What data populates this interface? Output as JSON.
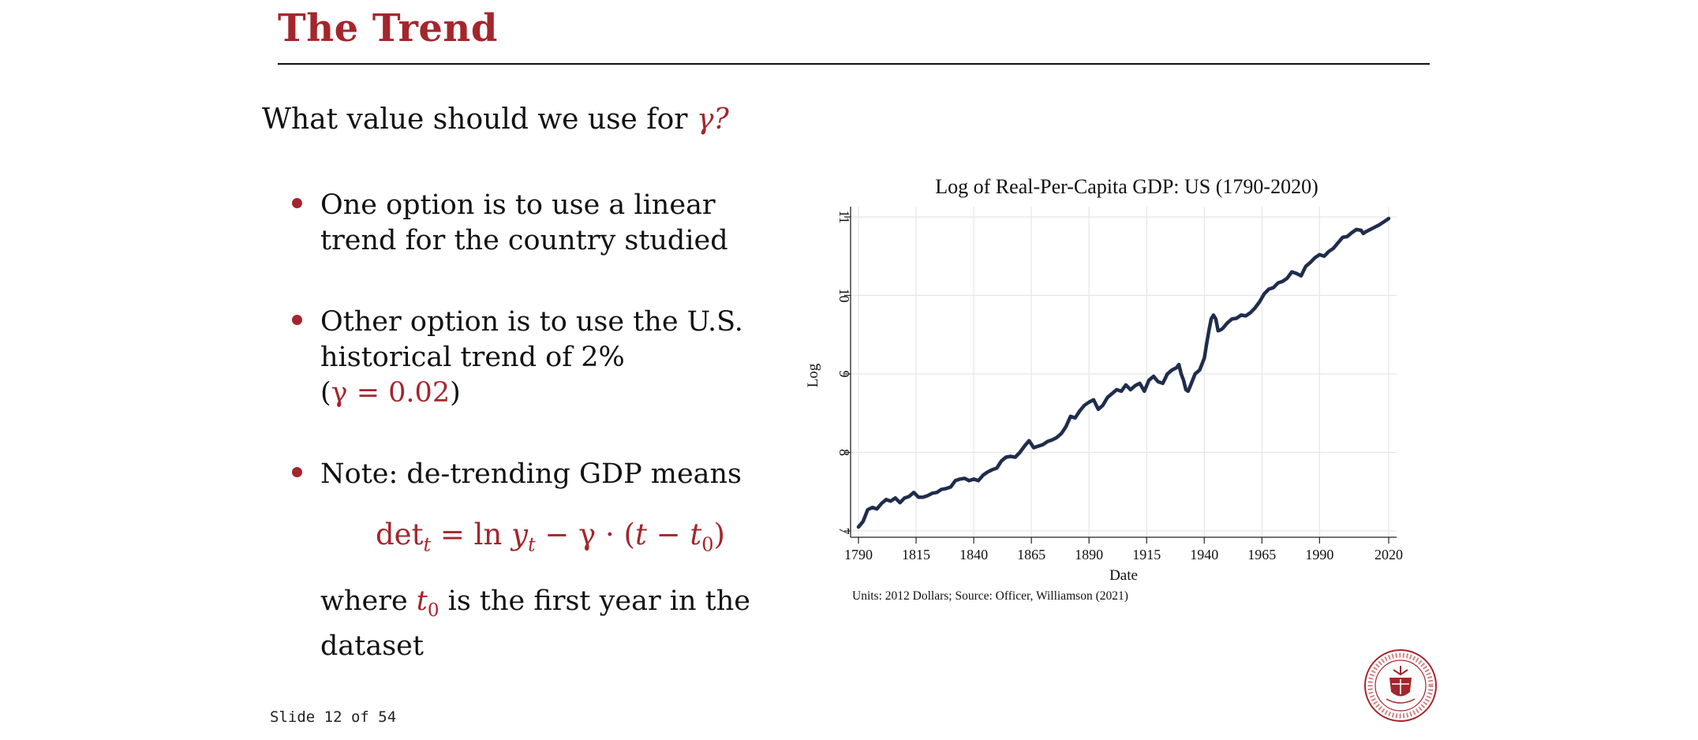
{
  "slide": {
    "title": "The Trend",
    "question_text": "What value should we use for ",
    "question_symbol": "γ?",
    "bullets": [
      {
        "text": "One option is to use a linear trend for the country studied"
      },
      {
        "text_before": "Other option is to use the U.S. historical trend of 2%",
        "open_paren": "(",
        "math": "γ = 0.02",
        "close_paren": ")"
      },
      {
        "text": "Note: de-trending GDP means"
      }
    ],
    "formula": {
      "det": "det",
      "t_sub": "t",
      "eq_ln": " = ln ",
      "y": "y",
      "y_sub": "t",
      "minus_gamma": " − γ · (",
      "t": "t",
      "minus": " − ",
      "t0": "t",
      "t0_sub": "0",
      "close": ")"
    },
    "where": {
      "before": "where ",
      "sym": "t",
      "sym_sub": "0",
      "after": " is the first year in the dataset"
    },
    "counter": "Slide 12 of 54",
    "accent_color": "#a4262c"
  },
  "chart_data": {
    "type": "line",
    "title": "Log of Real-Per-Capita GDP: US (1790-2020)",
    "xlabel": "Date",
    "ylabel": "Log",
    "note": "Units: 2012 Dollars; Source: Officer, Williamson (2021)",
    "xlim": [
      1790,
      2020
    ],
    "ylim": [
      7,
      11
    ],
    "xticks": [
      1790,
      1815,
      1840,
      1865,
      1890,
      1915,
      1940,
      1965,
      1990,
      2020
    ],
    "yticks": [
      7,
      8,
      9,
      10,
      11
    ],
    "grid": true,
    "line_color": "#1f2d4d",
    "series": [
      {
        "x": [
          1790,
          1792,
          1794,
          1796,
          1798,
          1800,
          1802,
          1804,
          1806,
          1808,
          1810,
          1812,
          1814,
          1816,
          1818,
          1820,
          1822,
          1824,
          1826,
          1828,
          1830,
          1832,
          1834,
          1836,
          1838,
          1840,
          1842,
          1844,
          1846,
          1848,
          1850,
          1852,
          1854,
          1856,
          1858,
          1860,
          1862,
          1864,
          1866,
          1868,
          1870,
          1872,
          1874,
          1876,
          1878,
          1880,
          1882,
          1884,
          1886,
          1888,
          1890,
          1892,
          1894,
          1896,
          1898,
          1900,
          1902,
          1904,
          1906,
          1908,
          1910,
          1912,
          1914,
          1916,
          1918,
          1920,
          1922,
          1924,
          1926,
          1928,
          1929,
          1930,
          1931,
          1932,
          1933,
          1934,
          1936,
          1938,
          1940,
          1941,
          1942,
          1943,
          1944,
          1945,
          1946,
          1947,
          1948,
          1950,
          1952,
          1954,
          1956,
          1958,
          1960,
          1962,
          1964,
          1966,
          1968,
          1970,
          1972,
          1974,
          1976,
          1978,
          1980,
          1982,
          1984,
          1986,
          1988,
          1990,
          1992,
          1994,
          1996,
          1998,
          2000,
          2002,
          2004,
          2006,
          2008,
          2009,
          2010,
          2012,
          2014,
          2016,
          2018,
          2020
        ],
        "y": [
          7.05,
          7.12,
          7.27,
          7.3,
          7.28,
          7.35,
          7.4,
          7.38,
          7.42,
          7.36,
          7.42,
          7.44,
          7.49,
          7.43,
          7.43,
          7.45,
          7.48,
          7.49,
          7.53,
          7.54,
          7.56,
          7.64,
          7.66,
          7.67,
          7.64,
          7.66,
          7.64,
          7.71,
          7.75,
          7.78,
          7.8,
          7.89,
          7.94,
          7.95,
          7.94,
          8.0,
          8.08,
          8.15,
          8.06,
          8.08,
          8.1,
          8.14,
          8.16,
          8.19,
          8.24,
          8.33,
          8.46,
          8.44,
          8.53,
          8.6,
          8.64,
          8.67,
          8.55,
          8.6,
          8.7,
          8.75,
          8.8,
          8.78,
          8.86,
          8.8,
          8.85,
          8.88,
          8.78,
          8.92,
          8.97,
          8.9,
          8.88,
          9.0,
          9.05,
          9.08,
          9.12,
          9.0,
          8.92,
          8.8,
          8.78,
          8.85,
          9.0,
          9.05,
          9.2,
          9.38,
          9.55,
          9.7,
          9.75,
          9.7,
          9.55,
          9.56,
          9.58,
          9.65,
          9.7,
          9.71,
          9.75,
          9.74,
          9.78,
          9.84,
          9.92,
          10.02,
          10.08,
          10.1,
          10.16,
          10.18,
          10.22,
          10.3,
          10.28,
          10.25,
          10.37,
          10.42,
          10.48,
          10.52,
          10.5,
          10.56,
          10.6,
          10.67,
          10.74,
          10.75,
          10.8,
          10.84,
          10.83,
          10.79,
          10.81,
          10.84,
          10.87,
          10.9,
          10.94,
          10.98
        ]
      }
    ]
  }
}
